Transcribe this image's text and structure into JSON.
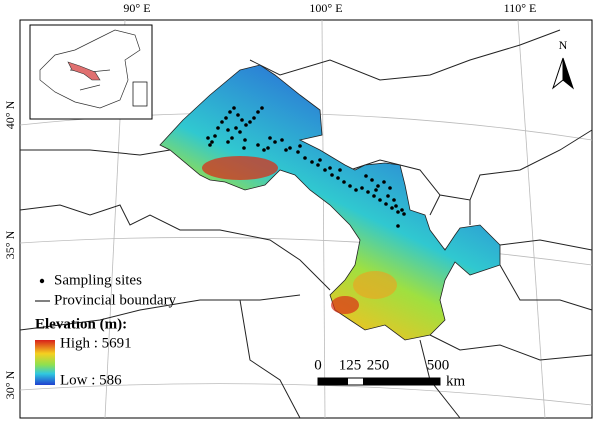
{
  "graticule": {
    "longitude_labels": [
      "90° E",
      "100° E",
      "110° E"
    ],
    "latitude_labels": [
      "40° N",
      "35° N",
      "30° N"
    ]
  },
  "north_arrow": "N",
  "legend": {
    "sites": "Sampling sites",
    "boundary": "Provincial boundary",
    "elevation_title": "Elevation (m):",
    "high": "High : 5691",
    "low": "Low : 586"
  },
  "scale_bar": {
    "labels": [
      "0",
      "125",
      "250",
      "500"
    ],
    "unit": "km"
  }
}
